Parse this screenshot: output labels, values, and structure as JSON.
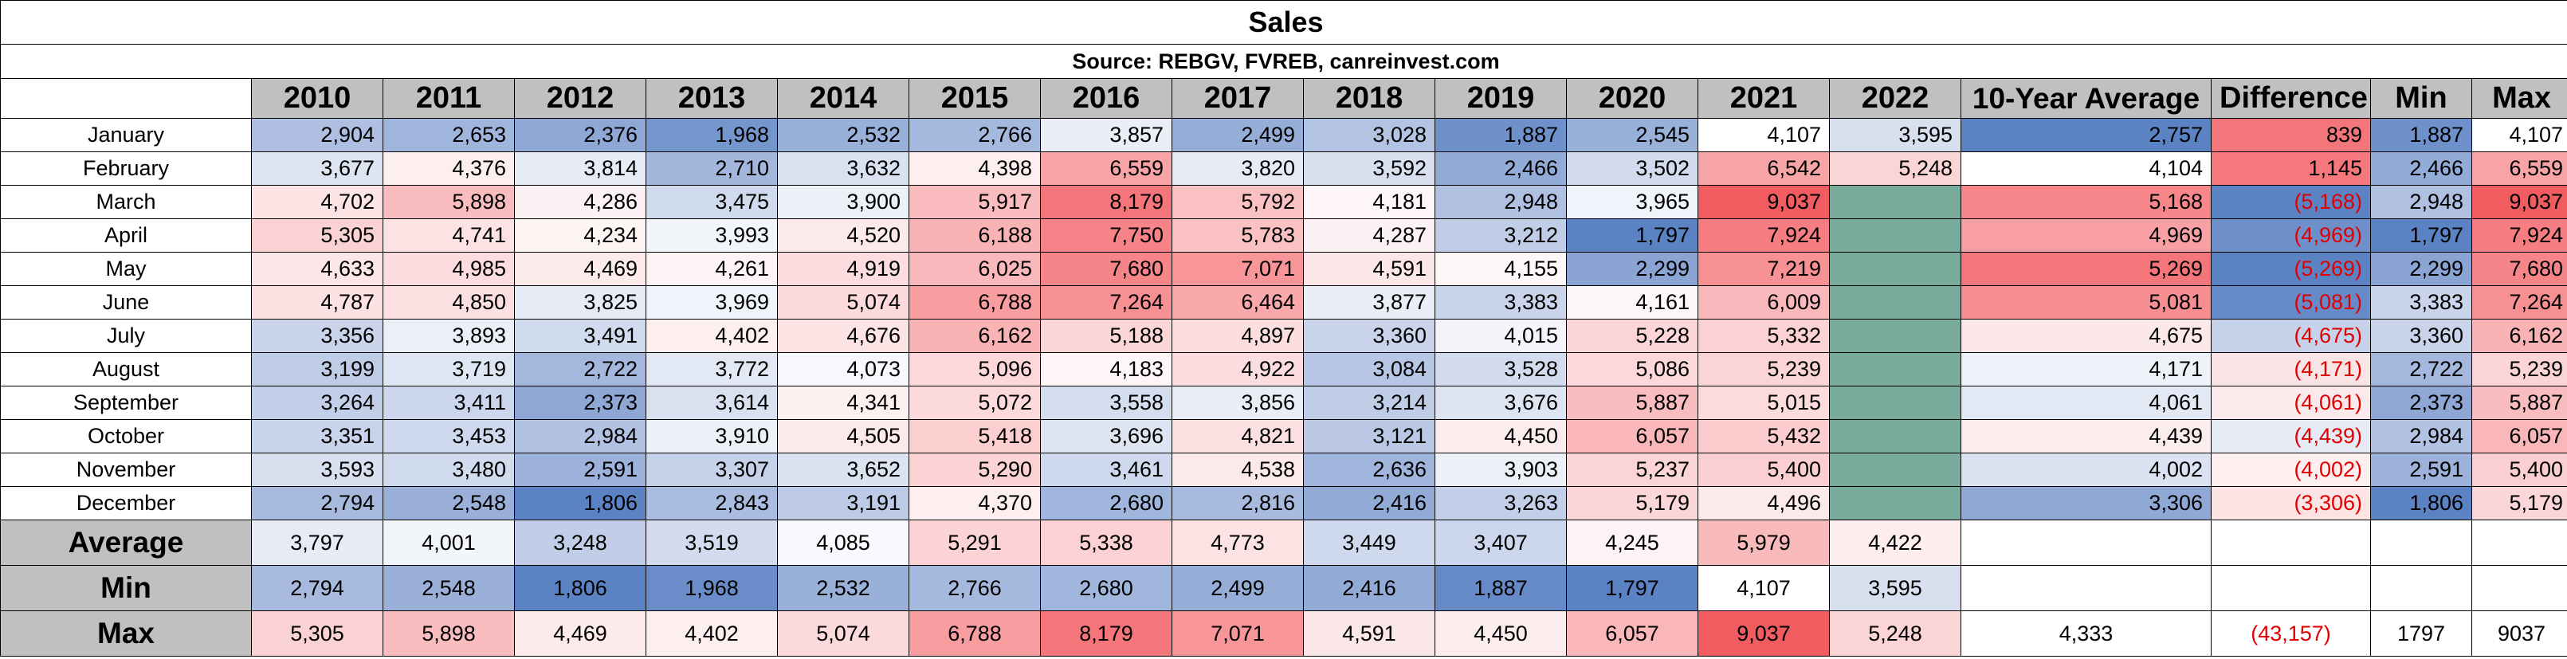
{
  "title": "Sales",
  "source": "Source: REBGV, FVREB, canreinvest.com",
  "columns": [
    "2010",
    "2011",
    "2012",
    "2013",
    "2014",
    "2015",
    "2016",
    "2017",
    "2018",
    "2019",
    "2020",
    "2021",
    "2022",
    "10-Year Average",
    "Difference",
    "Min",
    "Max"
  ],
  "months": [
    {
      "label": "January",
      "cells": [
        {
          "v": "2,904",
          "bg": "#aebfe1"
        },
        {
          "v": "2,653",
          "bg": "#a0b5db"
        },
        {
          "v": "2,376",
          "bg": "#8ea7d4"
        },
        {
          "v": "1,968",
          "bg": "#7596cd"
        },
        {
          "v": "2,532",
          "bg": "#99b0d8"
        },
        {
          "v": "2,766",
          "bg": "#a5b9de"
        },
        {
          "v": "3,857",
          "bg": "#eaeef6"
        },
        {
          "v": "2,499",
          "bg": "#95add7"
        },
        {
          "v": "3,028",
          "bg": "#b3c3e2"
        },
        {
          "v": "1,887",
          "bg": "#6f91cb"
        },
        {
          "v": "2,545",
          "bg": "#99b0d8"
        },
        {
          "v": "4,107",
          "bg": "#ffffff"
        },
        {
          "v": "3,595",
          "bg": "#d8e0f0"
        },
        {
          "v": "2,757",
          "bg": "#5b83c4"
        },
        {
          "v": "839",
          "bg": "#f4767a",
          "neg": false
        },
        {
          "v": "1,887",
          "bg": "#6f91cb"
        },
        {
          "v": "4,107",
          "bg": "#ffffff"
        }
      ]
    },
    {
      "label": "February",
      "cells": [
        {
          "v": "3,677",
          "bg": "#dde4f2"
        },
        {
          "v": "4,376",
          "bg": "#fdeff0"
        },
        {
          "v": "3,814",
          "bg": "#e6ebf5"
        },
        {
          "v": "2,710",
          "bg": "#a3b7dc"
        },
        {
          "v": "3,632",
          "bg": "#dae2f1"
        },
        {
          "v": "4,398",
          "bg": "#fdeeef"
        },
        {
          "v": "6,559",
          "bg": "#f8a4a7"
        },
        {
          "v": "3,820",
          "bg": "#e6ebf5"
        },
        {
          "v": "3,592",
          "bg": "#d8e0f0"
        },
        {
          "v": "2,466",
          "bg": "#93abd7"
        },
        {
          "v": "3,502",
          "bg": "#d2dbee"
        },
        {
          "v": "6,542",
          "bg": "#f8a5a8"
        },
        {
          "v": "5,248",
          "bg": "#fbd4d6"
        },
        {
          "v": "4,104",
          "bg": "#ffffff"
        },
        {
          "v": "1,145",
          "bg": "#f5787c",
          "neg": false
        },
        {
          "v": "2,466",
          "bg": "#93abd7"
        },
        {
          "v": "6,559",
          "bg": "#f8a4a7"
        }
      ]
    },
    {
      "label": "March",
      "cells": [
        {
          "v": "4,702",
          "bg": "#fce4e5"
        },
        {
          "v": "5,898",
          "bg": "#fabdbf"
        },
        {
          "v": "4,286",
          "bg": "#fdf2f3"
        },
        {
          "v": "3,475",
          "bg": "#d0daed"
        },
        {
          "v": "3,900",
          "bg": "#ecf0f7"
        },
        {
          "v": "5,917",
          "bg": "#fabcbe"
        },
        {
          "v": "8,179",
          "bg": "#f5767a"
        },
        {
          "v": "5,792",
          "bg": "#fac1c3"
        },
        {
          "v": "4,181",
          "bg": "#fef6f6"
        },
        {
          "v": "2,948",
          "bg": "#b0c0e1"
        },
        {
          "v": "3,965",
          "bg": "#f0f3f9"
        },
        {
          "v": "9,037",
          "bg": "#f15c60"
        },
        {
          "v": "",
          "bg": "#79ab9c"
        },
        {
          "v": "5,168",
          "bg": "#f7878a"
        },
        {
          "v": "(5,168)",
          "bg": "#5b83c4",
          "neg": true
        },
        {
          "v": "2,948",
          "bg": "#b0c0e1"
        },
        {
          "v": "9,037",
          "bg": "#f15c60"
        }
      ]
    },
    {
      "label": "April",
      "cells": [
        {
          "v": "5,305",
          "bg": "#fbd2d4"
        },
        {
          "v": "4,741",
          "bg": "#fce2e3"
        },
        {
          "v": "4,234",
          "bg": "#fdf4f4"
        },
        {
          "v": "3,993",
          "bg": "#f2f5fa"
        },
        {
          "v": "4,520",
          "bg": "#fce9ea"
        },
        {
          "v": "6,188",
          "bg": "#f9b3b5"
        },
        {
          "v": "7,750",
          "bg": "#f68387"
        },
        {
          "v": "5,783",
          "bg": "#fac1c3"
        },
        {
          "v": "4,287",
          "bg": "#fdf2f3"
        },
        {
          "v": "3,212",
          "bg": "#c0cde7"
        },
        {
          "v": "1,797",
          "bg": "#5b83c4"
        },
        {
          "v": "7,924",
          "bg": "#f67e82"
        },
        {
          "v": "",
          "bg": "#79ab9c"
        },
        {
          "v": "4,969",
          "bg": "#f8a0a3"
        },
        {
          "v": "(4,969)",
          "bg": "#6e90ca",
          "neg": true
        },
        {
          "v": "1,797",
          "bg": "#5b83c4"
        },
        {
          "v": "7,924",
          "bg": "#f67e82"
        }
      ]
    },
    {
      "label": "May",
      "cells": [
        {
          "v": "4,633",
          "bg": "#fce6e7"
        },
        {
          "v": "4,985",
          "bg": "#fcdcde"
        },
        {
          "v": "4,469",
          "bg": "#fdebec"
        },
        {
          "v": "4,261",
          "bg": "#fdf3f4"
        },
        {
          "v": "4,919",
          "bg": "#fcdddf"
        },
        {
          "v": "6,025",
          "bg": "#f9b8bb"
        },
        {
          "v": "7,680",
          "bg": "#f68589"
        },
        {
          "v": "7,071",
          "bg": "#f79598"
        },
        {
          "v": "4,591",
          "bg": "#fce7e8"
        },
        {
          "v": "4,155",
          "bg": "#fef7f7"
        },
        {
          "v": "2,299",
          "bg": "#8aa4d3"
        },
        {
          "v": "7,219",
          "bg": "#f79194"
        },
        {
          "v": "",
          "bg": "#79ab9c"
        },
        {
          "v": "5,269",
          "bg": "#f5767a"
        },
        {
          "v": "(5,269)",
          "bg": "#5b83c4",
          "neg": true
        },
        {
          "v": "2,299",
          "bg": "#8aa4d3"
        },
        {
          "v": "7,680",
          "bg": "#f68589"
        }
      ]
    },
    {
      "label": "June",
      "cells": [
        {
          "v": "4,787",
          "bg": "#fce1e2"
        },
        {
          "v": "4,850",
          "bg": "#fcdfe0"
        },
        {
          "v": "3,825",
          "bg": "#e6ebf5"
        },
        {
          "v": "3,969",
          "bg": "#f0f3f9"
        },
        {
          "v": "5,074",
          "bg": "#fcd9db"
        },
        {
          "v": "6,788",
          "bg": "#f89da0"
        },
        {
          "v": "7,264",
          "bg": "#f79093"
        },
        {
          "v": "6,464",
          "bg": "#f9a8ab"
        },
        {
          "v": "3,877",
          "bg": "#eaeef6"
        },
        {
          "v": "3,383",
          "bg": "#cad5eb"
        },
        {
          "v": "4,161",
          "bg": "#fef7f7"
        },
        {
          "v": "6,009",
          "bg": "#f9b8bb"
        },
        {
          "v": "",
          "bg": "#79ab9c"
        },
        {
          "v": "5,081",
          "bg": "#f78e91"
        },
        {
          "v": "(5,081)",
          "bg": "#6689c7",
          "neg": true
        },
        {
          "v": "3,383",
          "bg": "#cad5eb"
        },
        {
          "v": "7,264",
          "bg": "#f79093"
        }
      ]
    },
    {
      "label": "July",
      "cells": [
        {
          "v": "3,356",
          "bg": "#c9d4eb"
        },
        {
          "v": "3,893",
          "bg": "#ebeff7"
        },
        {
          "v": "3,491",
          "bg": "#d1dbee"
        },
        {
          "v": "4,402",
          "bg": "#fdeeef"
        },
        {
          "v": "4,676",
          "bg": "#fce4e5"
        },
        {
          "v": "6,162",
          "bg": "#f9b3b5"
        },
        {
          "v": "5,188",
          "bg": "#fbd6d7"
        },
        {
          "v": "4,897",
          "bg": "#fcdedf"
        },
        {
          "v": "3,360",
          "bg": "#c9d4eb"
        },
        {
          "v": "4,015",
          "bg": "#f3f5fa"
        },
        {
          "v": "5,228",
          "bg": "#fbd5d7"
        },
        {
          "v": "5,332",
          "bg": "#fbd1d3"
        },
        {
          "v": "",
          "bg": "#79ab9c"
        },
        {
          "v": "4,675",
          "bg": "#fce8e9"
        },
        {
          "v": "(4,675)",
          "bg": "#c6d2ea",
          "neg": true
        },
        {
          "v": "3,360",
          "bg": "#c9d4eb"
        },
        {
          "v": "6,162",
          "bg": "#f9b3b5"
        }
      ]
    },
    {
      "label": "August",
      "cells": [
        {
          "v": "3,199",
          "bg": "#bfcce6"
        },
        {
          "v": "3,719",
          "bg": "#dfe6f3"
        },
        {
          "v": "2,722",
          "bg": "#a4b8dd"
        },
        {
          "v": "3,772",
          "bg": "#e3e9f4"
        },
        {
          "v": "4,073",
          "bg": "#f6f8fb"
        },
        {
          "v": "5,096",
          "bg": "#fcd8da"
        },
        {
          "v": "4,183",
          "bg": "#fef6f6"
        },
        {
          "v": "4,922",
          "bg": "#fcdddf"
        },
        {
          "v": "3,084",
          "bg": "#b7c6e4"
        },
        {
          "v": "3,528",
          "bg": "#d3dcee"
        },
        {
          "v": "5,086",
          "bg": "#fcd8da"
        },
        {
          "v": "5,239",
          "bg": "#fbd5d6"
        },
        {
          "v": "",
          "bg": "#79ab9c"
        },
        {
          "v": "4,171",
          "bg": "#eef1f8"
        },
        {
          "v": "(4,171)",
          "bg": "#f8e3e5",
          "neg": true
        },
        {
          "v": "2,722",
          "bg": "#a4b8dd"
        },
        {
          "v": "5,239",
          "bg": "#fbd5d6"
        }
      ]
    },
    {
      "label": "September",
      "cells": [
        {
          "v": "3,264",
          "bg": "#c3cfe8"
        },
        {
          "v": "3,411",
          "bg": "#ccd6ec"
        },
        {
          "v": "2,373",
          "bg": "#8ea7d4"
        },
        {
          "v": "3,614",
          "bg": "#d9e1f1"
        },
        {
          "v": "4,341",
          "bg": "#fdf0f1"
        },
        {
          "v": "5,072",
          "bg": "#fcd9db"
        },
        {
          "v": "3,558",
          "bg": "#d5deef"
        },
        {
          "v": "3,856",
          "bg": "#e9edf6"
        },
        {
          "v": "3,214",
          "bg": "#c0cde7"
        },
        {
          "v": "3,676",
          "bg": "#dde4f2"
        },
        {
          "v": "5,887",
          "bg": "#fabdbf"
        },
        {
          "v": "5,015",
          "bg": "#fcdbdc"
        },
        {
          "v": "",
          "bg": "#79ab9c"
        },
        {
          "v": "4,061",
          "bg": "#e3e9f4"
        },
        {
          "v": "(4,061)",
          "bg": "#fbeaeb",
          "neg": true
        },
        {
          "v": "2,373",
          "bg": "#8ea7d4"
        },
        {
          "v": "5,887",
          "bg": "#fabdbf"
        }
      ]
    },
    {
      "label": "October",
      "cells": [
        {
          "v": "3,351",
          "bg": "#c8d4eb"
        },
        {
          "v": "3,453",
          "bg": "#cfd9ed"
        },
        {
          "v": "2,984",
          "bg": "#b2c2e2"
        },
        {
          "v": "3,910",
          "bg": "#ecf0f7"
        },
        {
          "v": "4,505",
          "bg": "#fceaeb"
        },
        {
          "v": "5,418",
          "bg": "#fbced0"
        },
        {
          "v": "3,696",
          "bg": "#dee5f2"
        },
        {
          "v": "4,821",
          "bg": "#fce0e1"
        },
        {
          "v": "3,121",
          "bg": "#bac8e5"
        },
        {
          "v": "4,450",
          "bg": "#fdeced"
        },
        {
          "v": "6,057",
          "bg": "#f9b7b9"
        },
        {
          "v": "5,432",
          "bg": "#fbcdcf"
        },
        {
          "v": "",
          "bg": "#79ab9c"
        },
        {
          "v": "4,439",
          "bg": "#fbeced"
        },
        {
          "v": "(4,439)",
          "bg": "#e5eaf5",
          "neg": true
        },
        {
          "v": "2,984",
          "bg": "#b2c2e2"
        },
        {
          "v": "6,057",
          "bg": "#f9b7b9"
        }
      ]
    },
    {
      "label": "November",
      "cells": [
        {
          "v": "3,593",
          "bg": "#d8e0f0"
        },
        {
          "v": "3,480",
          "bg": "#d1dbee"
        },
        {
          "v": "2,591",
          "bg": "#9cb2da"
        },
        {
          "v": "3,307",
          "bg": "#c6d2ea"
        },
        {
          "v": "3,652",
          "bg": "#dbe3f1"
        },
        {
          "v": "5,290",
          "bg": "#fbd3d5"
        },
        {
          "v": "3,461",
          "bg": "#cfd9ed"
        },
        {
          "v": "4,538",
          "bg": "#fce9ea"
        },
        {
          "v": "2,636",
          "bg": "#9fb5db"
        },
        {
          "v": "3,903",
          "bg": "#ecf0f7"
        },
        {
          "v": "5,237",
          "bg": "#fbd5d6"
        },
        {
          "v": "5,400",
          "bg": "#fbcfd1"
        },
        {
          "v": "",
          "bg": "#79ab9c"
        },
        {
          "v": "4,002",
          "bg": "#dbe2f1"
        },
        {
          "v": "(4,002)",
          "bg": "#fdeff0",
          "neg": true
        },
        {
          "v": "2,591",
          "bg": "#9cb2da"
        },
        {
          "v": "5,400",
          "bg": "#fbcfd1"
        }
      ]
    },
    {
      "label": "December",
      "cells": [
        {
          "v": "2,794",
          "bg": "#a7bade"
        },
        {
          "v": "2,548",
          "bg": "#9ab0d9"
        },
        {
          "v": "1,806",
          "bg": "#5b83c4"
        },
        {
          "v": "2,843",
          "bg": "#aabde0"
        },
        {
          "v": "3,191",
          "bg": "#becbe6"
        },
        {
          "v": "4,370",
          "bg": "#fdeff0"
        },
        {
          "v": "2,680",
          "bg": "#a1b6dc"
        },
        {
          "v": "2,816",
          "bg": "#a8bbdf"
        },
        {
          "v": "2,416",
          "bg": "#91aad6"
        },
        {
          "v": "3,263",
          "bg": "#c3cfe8"
        },
        {
          "v": "5,179",
          "bg": "#fbd6d8"
        },
        {
          "v": "4,496",
          "bg": "#fceaeb"
        },
        {
          "v": "",
          "bg": "#79ab9c"
        },
        {
          "v": "3,306",
          "bg": "#8fa8d5"
        },
        {
          "v": "(3,306)",
          "bg": "#fce3e4",
          "neg": true
        },
        {
          "v": "1,806",
          "bg": "#5b83c4"
        },
        {
          "v": "5,179",
          "bg": "#fbd6d8"
        }
      ]
    }
  ],
  "summary": [
    {
      "label": "Average",
      "cells": [
        {
          "v": "3,797",
          "bg": "#e6ebf5"
        },
        {
          "v": "4,001",
          "bg": "#f2f5fa"
        },
        {
          "v": "3,248",
          "bg": "#c2cee7"
        },
        {
          "v": "3,519",
          "bg": "#d3dcee"
        },
        {
          "v": "4,085",
          "bg": "#f8f9fc"
        },
        {
          "v": "5,291",
          "bg": "#fbd3d5"
        },
        {
          "v": "5,338",
          "bg": "#fbd1d3"
        },
        {
          "v": "4,773",
          "bg": "#fce2e3"
        },
        {
          "v": "3,449",
          "bg": "#cfd9ed"
        },
        {
          "v": "3,407",
          "bg": "#ccd6ec"
        },
        {
          "v": "4,245",
          "bg": "#fdf3f4"
        },
        {
          "v": "5,979",
          "bg": "#f9babc"
        },
        {
          "v": "4,422",
          "bg": "#fdedee"
        },
        {
          "v": "",
          "bg": "#ffffff"
        },
        {
          "v": "",
          "bg": "#ffffff"
        },
        {
          "v": "",
          "bg": "#ffffff"
        },
        {
          "v": "",
          "bg": "#ffffff"
        }
      ]
    },
    {
      "label": "Min",
      "cells": [
        {
          "v": "2,794",
          "bg": "#a7bade"
        },
        {
          "v": "2,548",
          "bg": "#9ab0d9"
        },
        {
          "v": "1,806",
          "bg": "#5b83c4"
        },
        {
          "v": "1,968",
          "bg": "#6a8dc9"
        },
        {
          "v": "2,532",
          "bg": "#99b0d8"
        },
        {
          "v": "2,766",
          "bg": "#a5b9de"
        },
        {
          "v": "2,680",
          "bg": "#a1b6dc"
        },
        {
          "v": "2,499",
          "bg": "#95add7"
        },
        {
          "v": "2,416",
          "bg": "#91aad6"
        },
        {
          "v": "1,887",
          "bg": "#6689c7"
        },
        {
          "v": "1,797",
          "bg": "#5b83c4"
        },
        {
          "v": "4,107",
          "bg": "#ffffff"
        },
        {
          "v": "3,595",
          "bg": "#d8e0f0"
        },
        {
          "v": "",
          "bg": "#ffffff"
        },
        {
          "v": "",
          "bg": "#ffffff"
        },
        {
          "v": "",
          "bg": "#ffffff"
        },
        {
          "v": "",
          "bg": "#ffffff"
        }
      ]
    },
    {
      "label": "Max",
      "cells": [
        {
          "v": "5,305",
          "bg": "#fbd2d4"
        },
        {
          "v": "5,898",
          "bg": "#fabdbf"
        },
        {
          "v": "4,469",
          "bg": "#fdebec"
        },
        {
          "v": "4,402",
          "bg": "#fdeeef"
        },
        {
          "v": "5,074",
          "bg": "#fcd9db"
        },
        {
          "v": "6,788",
          "bg": "#f89da0"
        },
        {
          "v": "8,179",
          "bg": "#f5767a"
        },
        {
          "v": "7,071",
          "bg": "#f79598"
        },
        {
          "v": "4,591",
          "bg": "#fce7e8"
        },
        {
          "v": "4,450",
          "bg": "#fdeced"
        },
        {
          "v": "6,057",
          "bg": "#f9b7b9"
        },
        {
          "v": "9,037",
          "bg": "#f15c60"
        },
        {
          "v": "5,248",
          "bg": "#fbd4d6"
        },
        {
          "v": "4,333",
          "bg": "#ffffff"
        },
        {
          "v": "(43,157)",
          "bg": "#ffffff",
          "neg": true
        },
        {
          "v": "1797",
          "bg": "#ffffff"
        },
        {
          "v": "9037",
          "bg": "#ffffff"
        }
      ]
    }
  ]
}
